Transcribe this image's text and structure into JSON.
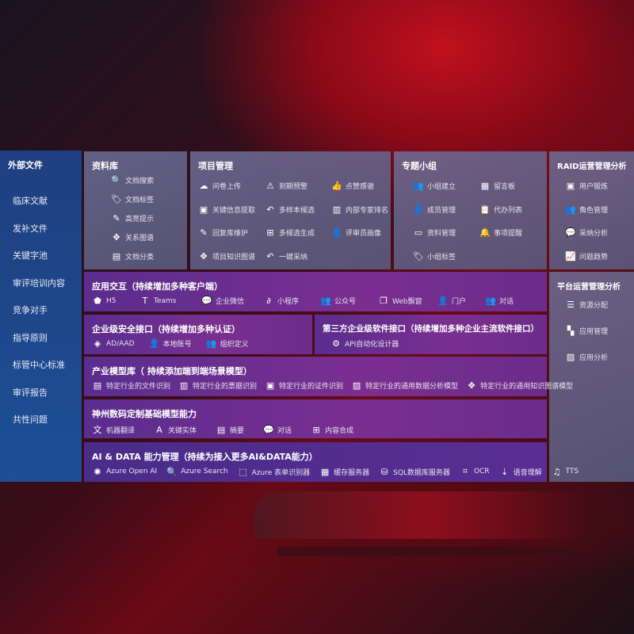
{
  "sidebar": {
    "title": "外部文件",
    "items": [
      "临床文献",
      "发补文件",
      "关键字池",
      "审评培训内容",
      "竞争对手",
      "指导原则",
      "标管中心标准",
      "审评报告",
      "共性问题"
    ]
  },
  "library": {
    "title": "资料库",
    "items": [
      {
        "icon": "doc-search-icon",
        "g": "🔍",
        "label": "文档搜索"
      },
      {
        "icon": "tag-icon",
        "g": "🏷",
        "label": "文档标签"
      },
      {
        "icon": "pen-icon",
        "g": "✎",
        "label": "高亮提示"
      },
      {
        "icon": "graph-icon",
        "g": "✥",
        "label": "关系图谱"
      },
      {
        "icon": "doc-category-icon",
        "g": "▤",
        "label": "文档分类"
      }
    ]
  },
  "project": {
    "title": "项目管理",
    "items": [
      {
        "icon": "cloud-upload-icon",
        "g": "☁",
        "label": "问卷上传"
      },
      {
        "icon": "alarm-icon",
        "g": "⚠",
        "label": "到期预警"
      },
      {
        "icon": "thumbs-up-icon",
        "g": "👍",
        "label": "点赞感谢"
      },
      {
        "icon": "info-icon",
        "g": "▣",
        "label": "关键信息提取"
      },
      {
        "icon": "reply-icon",
        "g": "↶",
        "label": "多样本候选"
      },
      {
        "icon": "rank-icon",
        "g": "▥",
        "label": "内部专家排名"
      },
      {
        "icon": "edit-icon",
        "g": "✎",
        "label": "回复库维护"
      },
      {
        "icon": "puzzle-icon",
        "g": "⊞",
        "label": "多候选生成"
      },
      {
        "icon": "user-icon",
        "g": "👤",
        "label": "评审员画像"
      },
      {
        "icon": "knowledge-graph-icon",
        "g": "✥",
        "label": "项目知识图谱"
      },
      {
        "icon": "reply-icon",
        "g": "↶",
        "label": "一键采纳"
      }
    ]
  },
  "group": {
    "title": "专题小组",
    "items": [
      {
        "icon": "group-icon",
        "g": "👥",
        "label": "小组建立"
      },
      {
        "icon": "bbs-icon",
        "g": "▦",
        "label": "留言板"
      },
      {
        "icon": "member-icon",
        "g": "👤",
        "label": "成员管理"
      },
      {
        "icon": "clipboard-icon",
        "g": "📋",
        "label": "代办列表"
      },
      {
        "icon": "folder-icon",
        "g": "▭",
        "label": "资料管理"
      },
      {
        "icon": "bell-icon",
        "g": "🔔",
        "label": "事项提醒"
      },
      {
        "icon": "tag-icon",
        "g": "🏷",
        "label": "小组标签"
      }
    ]
  },
  "raid": {
    "title": "RAID运营管理分析",
    "items": [
      {
        "icon": "id-card-icon",
        "g": "▣",
        "label": "用户锻炼"
      },
      {
        "icon": "roles-icon",
        "g": "👥",
        "label": "角色管理"
      },
      {
        "icon": "qa-icon",
        "g": "💬",
        "label": "采纳分析"
      },
      {
        "icon": "trend-icon",
        "g": "📈",
        "label": "问题趋势"
      }
    ]
  },
  "platform": {
    "title": "平台运营管理分析",
    "items": [
      {
        "icon": "list-icon",
        "g": "☰",
        "label": "资源分配"
      },
      {
        "icon": "apps-icon",
        "g": "▚",
        "label": "应用管理"
      },
      {
        "icon": "chart-icon",
        "g": "▨",
        "label": "应用分析"
      }
    ]
  },
  "app": {
    "title": "应用交互（持续增加多种客户端）",
    "items": [
      {
        "icon": "html5-icon",
        "g": "⬟",
        "label": "H5"
      },
      {
        "icon": "teams-icon",
        "g": "T",
        "label": "Teams"
      },
      {
        "icon": "wecom-icon",
        "g": "💬",
        "label": "企业微信"
      },
      {
        "icon": "miniprogram-icon",
        "g": "∂",
        "label": "小程序"
      },
      {
        "icon": "official-account-icon",
        "g": "👥",
        "label": "公众号"
      },
      {
        "icon": "window-icon",
        "g": "❐",
        "label": "Web飘窗"
      },
      {
        "icon": "portal-icon",
        "g": "👤",
        "label": "门户"
      },
      {
        "icon": "chat-icon",
        "g": "👥",
        "label": "对话"
      }
    ]
  },
  "security": {
    "title": "企业级安全接口（持续增加多种认证）",
    "items": [
      {
        "icon": "aad-icon",
        "g": "◈",
        "label": "AD/AAD"
      },
      {
        "icon": "local-account-icon",
        "g": "👤",
        "label": "本地账号"
      },
      {
        "icon": "org-icon",
        "g": "👥",
        "label": "组织定义"
      }
    ]
  },
  "thirdparty": {
    "title": "第三方企业级软件接口（持续增加多种企业主流软件接口）",
    "items": [
      {
        "icon": "gear-icon",
        "g": "⚙",
        "label": "API自动化设计器"
      }
    ]
  },
  "industry": {
    "title": "产业模型库（ 持续添加端到端场景模型）",
    "items": [
      {
        "icon": "file-icon",
        "g": "▤",
        "label": "特定行业的文件识别"
      },
      {
        "icon": "receipt-icon",
        "g": "▥",
        "label": "特定行业的票据识别"
      },
      {
        "icon": "id-card-icon",
        "g": "▣",
        "label": "特定行业的证件识别"
      },
      {
        "icon": "data-analysis-icon",
        "g": "▨",
        "label": "特定行业的通用数据分析模型"
      },
      {
        "icon": "knowledge-graph-icon",
        "g": "✥",
        "label": "特定行业的通用知识图谱模型"
      }
    ]
  },
  "base": {
    "title": "神州数码定制基础模型能力",
    "items": [
      {
        "icon": "translate-icon",
        "g": "文",
        "label": "机器翻译"
      },
      {
        "icon": "entity-icon",
        "g": "A",
        "label": "关键实体"
      },
      {
        "icon": "summary-icon",
        "g": "▤",
        "label": "摘要"
      },
      {
        "icon": "dialog-icon",
        "g": "💬",
        "label": "对话"
      },
      {
        "icon": "compose-icon",
        "g": "⊞",
        "label": "内容合成"
      }
    ]
  },
  "ai": {
    "title": "AI & DATA 能力管理（持续为接入更多AI&DATA能力）",
    "items": [
      {
        "icon": "openai-icon",
        "g": "✺",
        "label": "Azure Open AI"
      },
      {
        "icon": "search-icon",
        "g": "🔍",
        "label": "Azure Search"
      },
      {
        "icon": "form-recognizer-icon",
        "g": "⬚",
        "label": "Azure 表单识别器"
      },
      {
        "icon": "cache-server-icon",
        "g": "▦",
        "label": "缓存服务器"
      },
      {
        "icon": "sql-icon",
        "g": "⛁",
        "label": "SQL数据库服务器"
      },
      {
        "icon": "ocr-icon",
        "g": "⌗",
        "label": "OCR"
      },
      {
        "icon": "speech-icon",
        "g": "⇣",
        "label": "语音理解"
      },
      {
        "icon": "tts-icon",
        "g": "♫",
        "label": "TTS"
      }
    ]
  }
}
